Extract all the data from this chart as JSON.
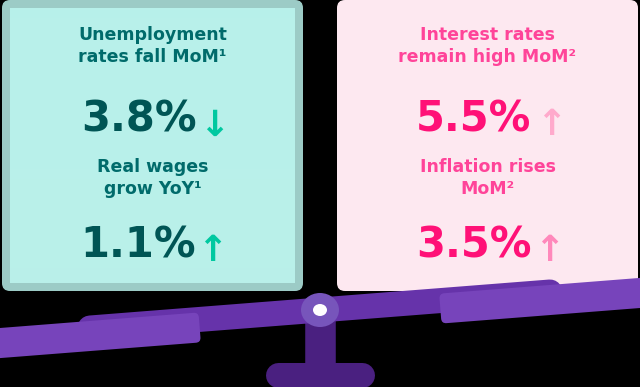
{
  "background_color": "#000000",
  "left_box_color": "#b8f0ea",
  "right_box_color": "#fde8f0",
  "left_title_1": "Unemployment\nrates fall MoM¹",
  "left_value_1": "3.8%↓",
  "left_title_2": "Real wages\ngrow YoY¹",
  "left_value_2": "1.1%↑",
  "right_title_1": "Interest rates\nremain high MoM²",
  "right_value_1": "5.5%↑",
  "right_title_2": "Inflation rises\nMoM²",
  "right_value_2": "3.5%↑",
  "left_title_color": "#006b6b",
  "left_value_color": "#005555",
  "left_arrow_1_color": "#00c8a0",
  "left_arrow_2_color": "#00c8a0",
  "right_title_color": "#ff4499",
  "right_value_color": "#ff1177",
  "right_arrow_1_color": "#ffaacc",
  "right_arrow_2_color": "#ff88bb",
  "beam_color": "#6633aa",
  "plate_color": "#7744bb",
  "stand_color": "#4a2080",
  "pivot_color": "#7755bb"
}
